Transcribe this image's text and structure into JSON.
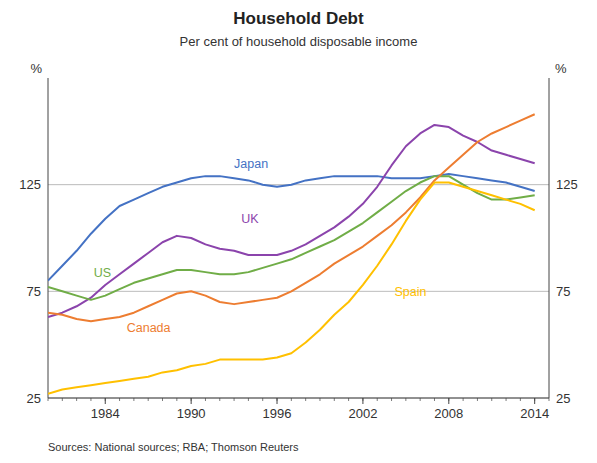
{
  "chart_data": {
    "type": "line",
    "title": "Household Debt",
    "subtitle": "Per cent of household disposable income",
    "source": "Sources:  National sources; RBA; Thomson Reuters",
    "ylabel": "%",
    "y2label": "%",
    "xlim": [
      1980,
      2015
    ],
    "xticks": [
      1984,
      1990,
      1996,
      2002,
      2008,
      2014
    ],
    "ylim": [
      25,
      175
    ],
    "yticks": [
      25,
      75,
      125
    ],
    "y2lim": [
      25,
      175
    ],
    "y2ticks": [
      25,
      75,
      125
    ],
    "grid": true,
    "x": [
      1980,
      1981,
      1982,
      1983,
      1984,
      1985,
      1986,
      1987,
      1988,
      1989,
      1990,
      1991,
      1992,
      1993,
      1994,
      1995,
      1996,
      1997,
      1998,
      1999,
      2000,
      2001,
      2002,
      2003,
      2004,
      2005,
      2006,
      2007,
      2008,
      2009,
      2010,
      2011,
      2012,
      2013,
      2014
    ],
    "series": [
      {
        "name": "Japan",
        "color": "#4472C4",
        "label_x": 1993.0,
        "label_y": 135,
        "values": [
          80,
          87,
          94,
          102,
          109,
          115,
          118,
          121,
          124,
          126,
          128,
          129,
          129,
          128,
          127,
          125,
          124,
          125,
          127,
          128,
          129,
          129,
          129,
          129,
          128,
          128,
          128,
          129,
          130,
          129,
          128,
          127,
          126,
          124,
          122
        ]
      },
      {
        "name": "UK",
        "color": "#8B44AC",
        "label_x": 1993.5,
        "label_y": 109,
        "values": [
          63,
          65,
          68,
          72,
          78,
          83,
          88,
          93,
          98,
          101,
          100,
          97,
          95,
          94,
          92,
          92,
          92,
          94,
          97,
          101,
          105,
          110,
          116,
          124,
          134,
          143,
          149,
          153,
          152,
          148,
          145,
          141,
          139,
          137,
          135
        ]
      },
      {
        "name": "US",
        "color": "#70AD47",
        "label_x": 1983.2,
        "label_y": 84,
        "values": [
          77,
          75,
          73,
          71,
          73,
          76,
          79,
          81,
          83,
          85,
          85,
          84,
          83,
          83,
          84,
          86,
          88,
          90,
          93,
          96,
          99,
          103,
          107,
          112,
          117,
          122,
          126,
          129,
          129,
          125,
          121,
          118,
          118,
          119,
          120
        ]
      },
      {
        "name": "Canada",
        "color": "#ED7D31",
        "label_x": 1985.5,
        "label_y": 58,
        "values": [
          65,
          64,
          62,
          61,
          62,
          63,
          65,
          68,
          71,
          74,
          75,
          73,
          70,
          69,
          70,
          71,
          72,
          75,
          79,
          83,
          88,
          92,
          96,
          101,
          106,
          112,
          119,
          127,
          133,
          139,
          145,
          149,
          152,
          155,
          158
        ]
      },
      {
        "name": "Spain",
        "color": "#FFC000",
        "label_x": 2004.2,
        "label_y": 75,
        "values": [
          27,
          29,
          30,
          31,
          32,
          33,
          34,
          35,
          37,
          38,
          40,
          41,
          43,
          43,
          43,
          43,
          44,
          46,
          51,
          57,
          64,
          70,
          78,
          87,
          97,
          108,
          118,
          126,
          126,
          124,
          122,
          120,
          118,
          116,
          113
        ]
      }
    ]
  }
}
